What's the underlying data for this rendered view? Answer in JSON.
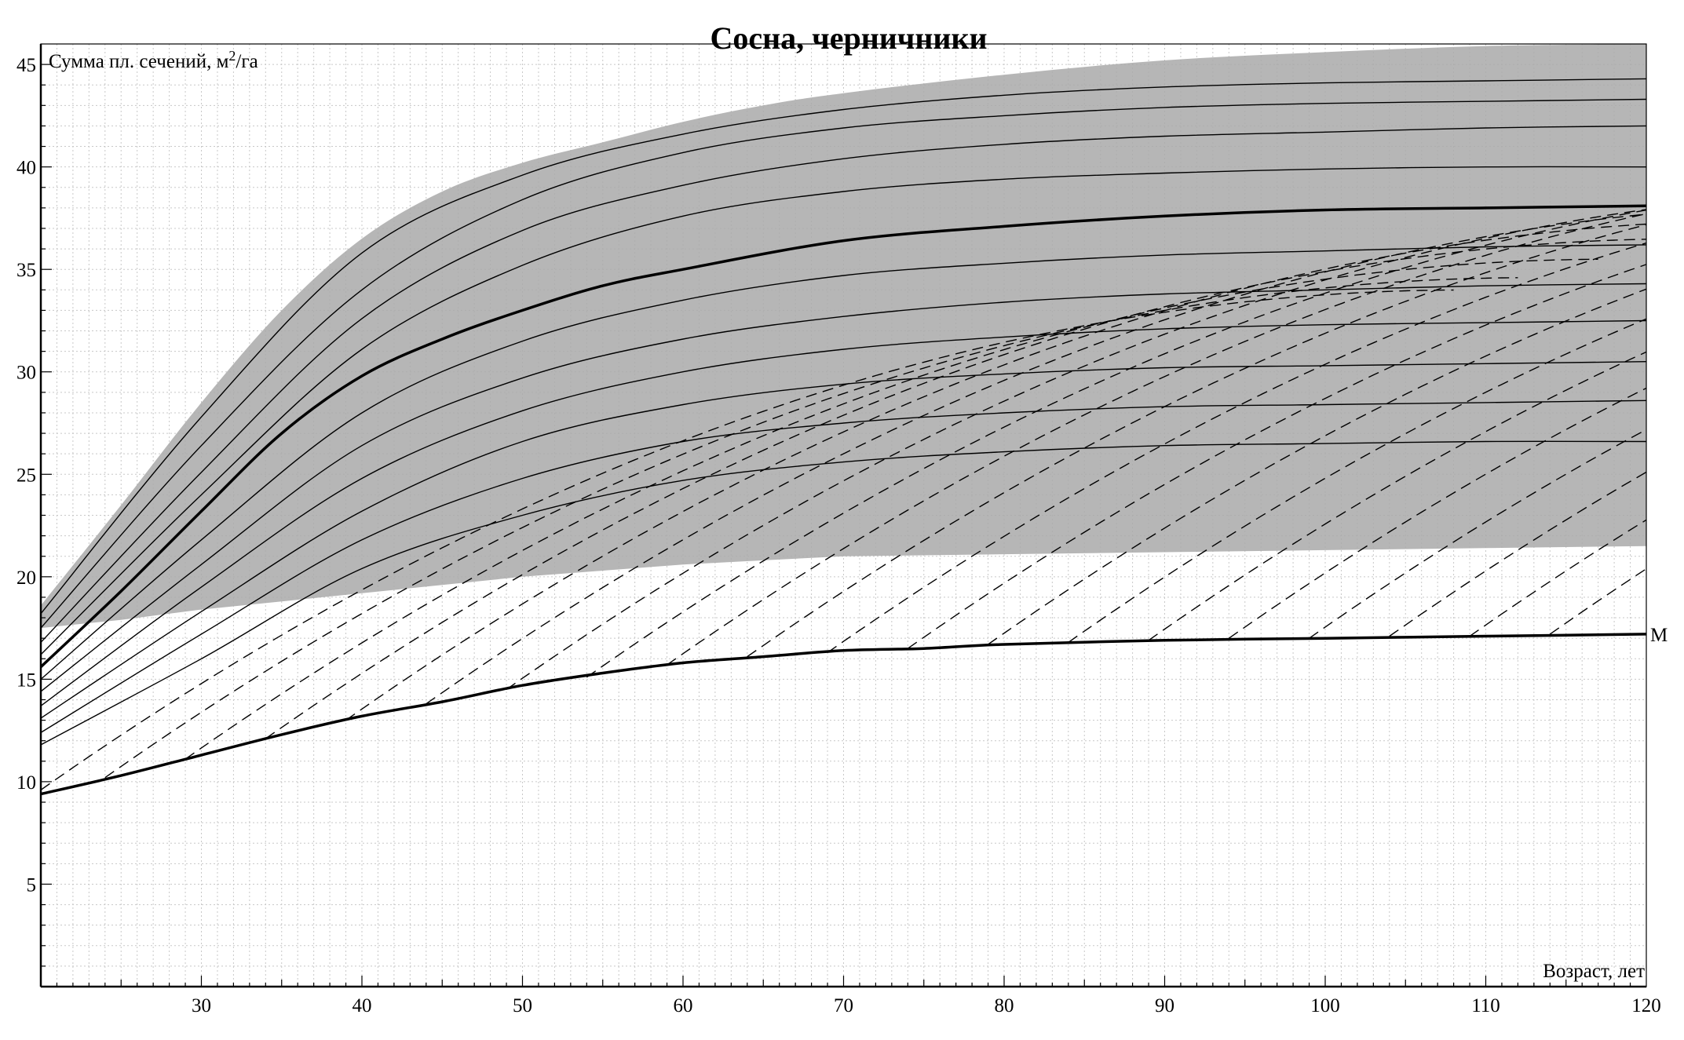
{
  "chart_data": {
    "type": "line",
    "title": "Сосна, черничники",
    "ylabel_prefix": "Сумма пл. сечений, м",
    "ylabel_sup": "2",
    "ylabel_suffix": "/га",
    "xlabel": "Возраст, лет",
    "xlim": [
      20,
      120
    ],
    "ylim": [
      0,
      46
    ],
    "xticks": [
      30,
      40,
      50,
      60,
      70,
      80,
      90,
      100,
      110,
      120
    ],
    "yticks": [
      5,
      10,
      15,
      20,
      25,
      30,
      35,
      40,
      45
    ],
    "grid": true,
    "colors": {
      "shaded_band": "#a9a9a9",
      "lines": "#000000",
      "background": "#ffffff"
    },
    "shaded_band": {
      "x": [
        20,
        25,
        30,
        35,
        40,
        45,
        50,
        55,
        60,
        65,
        70,
        80,
        90,
        100,
        110,
        120
      ],
      "upper": [
        18.6,
        23.5,
        28.5,
        33.0,
        36.5,
        38.8,
        40.2,
        41.2,
        42.2,
        43.0,
        43.6,
        44.5,
        45.2,
        45.6,
        45.9,
        46.0
      ],
      "lower": [
        17.5,
        17.9,
        18.4,
        18.8,
        19.2,
        19.6,
        20.0,
        20.3,
        20.6,
        20.8,
        21.0,
        21.1,
        21.2,
        21.3,
        21.4,
        21.5
      ]
    },
    "series": [
      {
        "name": "M",
        "style": "thick",
        "x": [
          20,
          25,
          30,
          35,
          40,
          45,
          50,
          55,
          60,
          65,
          70,
          75,
          80,
          90,
          100,
          110,
          120
        ],
        "values": [
          9.4,
          10.3,
          11.3,
          12.3,
          13.2,
          13.9,
          14.7,
          15.3,
          15.8,
          16.1,
          16.4,
          16.5,
          16.7,
          16.9,
          17.0,
          17.1,
          17.2
        ]
      },
      {
        "name": "",
        "style": "thick",
        "x": [
          20,
          25,
          30,
          35,
          40,
          45,
          50,
          55,
          60,
          70,
          80,
          90,
          100,
          110,
          120
        ],
        "values": [
          15.6,
          19.3,
          23.2,
          27.0,
          29.8,
          31.6,
          33.0,
          34.2,
          35.0,
          36.4,
          37.1,
          37.6,
          37.9,
          38.0,
          38.1
        ]
      },
      {
        "name": "",
        "style": "thin",
        "x": [
          20,
          30,
          40,
          50,
          60,
          70,
          80,
          90,
          100,
          110,
          120
        ],
        "values": [
          18.2,
          27.8,
          35.8,
          39.6,
          41.6,
          42.8,
          43.5,
          43.9,
          44.1,
          44.2,
          44.3
        ]
      },
      {
        "name": "",
        "style": "thin",
        "x": [
          20,
          30,
          40,
          50,
          60,
          70,
          80,
          90,
          100,
          110,
          120
        ],
        "values": [
          17.5,
          26.4,
          34.0,
          38.4,
          40.7,
          41.9,
          42.5,
          42.9,
          43.1,
          43.2,
          43.3
        ]
      },
      {
        "name": "",
        "style": "thin",
        "x": [
          20,
          30,
          40,
          50,
          60,
          70,
          80,
          90,
          100,
          110,
          120
        ],
        "values": [
          16.8,
          25.1,
          32.6,
          36.9,
          39.1,
          40.4,
          41.1,
          41.5,
          41.7,
          41.9,
          42.0
        ]
      },
      {
        "name": "",
        "style": "thin",
        "x": [
          20,
          30,
          40,
          50,
          60,
          70,
          80,
          90,
          100,
          110,
          120
        ],
        "values": [
          16.2,
          24.0,
          31.1,
          35.2,
          37.6,
          38.8,
          39.4,
          39.7,
          39.9,
          40.0,
          40.0
        ]
      },
      {
        "name": "",
        "style": "thin",
        "x": [
          20,
          30,
          40,
          50,
          60,
          70,
          80,
          90,
          100,
          110,
          120
        ],
        "values": [
          15.0,
          21.8,
          28.0,
          31.5,
          33.5,
          34.7,
          35.3,
          35.7,
          35.9,
          36.1,
          36.2
        ]
      },
      {
        "name": "",
        "style": "thin",
        "x": [
          20,
          30,
          40,
          50,
          60,
          70,
          80,
          90,
          100,
          110,
          120
        ],
        "values": [
          14.4,
          20.6,
          26.4,
          29.7,
          31.6,
          32.7,
          33.4,
          33.8,
          34.0,
          34.2,
          34.3
        ]
      },
      {
        "name": "",
        "style": "thin",
        "x": [
          20,
          30,
          40,
          50,
          60,
          70,
          80,
          90,
          100,
          110,
          120
        ],
        "values": [
          13.7,
          19.5,
          24.8,
          28.1,
          30.0,
          31.1,
          31.7,
          32.1,
          32.3,
          32.4,
          32.5
        ]
      },
      {
        "name": "",
        "style": "thin",
        "x": [
          20,
          30,
          40,
          50,
          60,
          70,
          80,
          90,
          100,
          110,
          120
        ],
        "values": [
          13.1,
          18.3,
          23.2,
          26.6,
          28.4,
          29.4,
          29.9,
          30.2,
          30.3,
          30.4,
          30.5
        ]
      },
      {
        "name": "",
        "style": "thin",
        "x": [
          20,
          30,
          40,
          50,
          60,
          70,
          80,
          90,
          100,
          110,
          120
        ],
        "values": [
          12.4,
          17.2,
          21.8,
          24.8,
          26.6,
          27.5,
          28.0,
          28.3,
          28.4,
          28.5,
          28.6
        ]
      },
      {
        "name": "",
        "style": "thin",
        "x": [
          20,
          30,
          40,
          50,
          60,
          70,
          80,
          90,
          100,
          110,
          120
        ],
        "values": [
          11.8,
          16.0,
          20.4,
          23.0,
          24.7,
          25.6,
          26.1,
          26.4,
          26.5,
          26.6,
          26.6
        ]
      }
    ],
    "dashed_lines": [
      {
        "x0": 20,
        "y0": 9.6,
        "slope": 0.55,
        "curve": 0.0031
      },
      {
        "x0": 24,
        "y0": 10.2,
        "slope": 0.55,
        "curve": 0.0031
      },
      {
        "x0": 29,
        "y0": 11.1,
        "slope": 0.55,
        "curve": 0.0031
      },
      {
        "x0": 34,
        "y0": 12.1,
        "slope": 0.55,
        "curve": 0.0031
      },
      {
        "x0": 39,
        "y0": 13.0,
        "slope": 0.55,
        "curve": 0.0031
      },
      {
        "x0": 44,
        "y0": 13.8,
        "slope": 0.55,
        "curve": 0.0031
      },
      {
        "x0": 49,
        "y0": 14.5,
        "slope": 0.55,
        "curve": 0.0031
      },
      {
        "x0": 54,
        "y0": 15.1,
        "slope": 0.55,
        "curve": 0.0031
      },
      {
        "x0": 59,
        "y0": 15.7,
        "slope": 0.55,
        "curve": 0.0031
      },
      {
        "x0": 64,
        "y0": 16.1,
        "slope": 0.55,
        "curve": 0.0031
      },
      {
        "x0": 69,
        "y0": 16.3,
        "slope": 0.55,
        "curve": 0.0031
      },
      {
        "x0": 74,
        "y0": 16.5,
        "slope": 0.55,
        "curve": 0.0031
      },
      {
        "x0": 79,
        "y0": 16.7,
        "slope": 0.55,
        "curve": 0.0031
      },
      {
        "x0": 84,
        "y0": 16.8,
        "slope": 0.55,
        "curve": 0.0031
      },
      {
        "x0": 89,
        "y0": 16.9,
        "slope": 0.55,
        "curve": 0.0031
      },
      {
        "x0": 94,
        "y0": 17.0,
        "slope": 0.55,
        "curve": 0.0031
      },
      {
        "x0": 99,
        "y0": 17.0,
        "slope": 0.55,
        "curve": 0.0031
      },
      {
        "x0": 104,
        "y0": 17.1,
        "slope": 0.55,
        "curve": 0.0031
      },
      {
        "x0": 109,
        "y0": 17.1,
        "slope": 0.55,
        "curve": 0.0031
      },
      {
        "x0": 114,
        "y0": 17.2,
        "slope": 0.55,
        "curve": 0.0031
      }
    ],
    "annotations": [
      {
        "text": "M",
        "attach_series": "M"
      }
    ]
  }
}
